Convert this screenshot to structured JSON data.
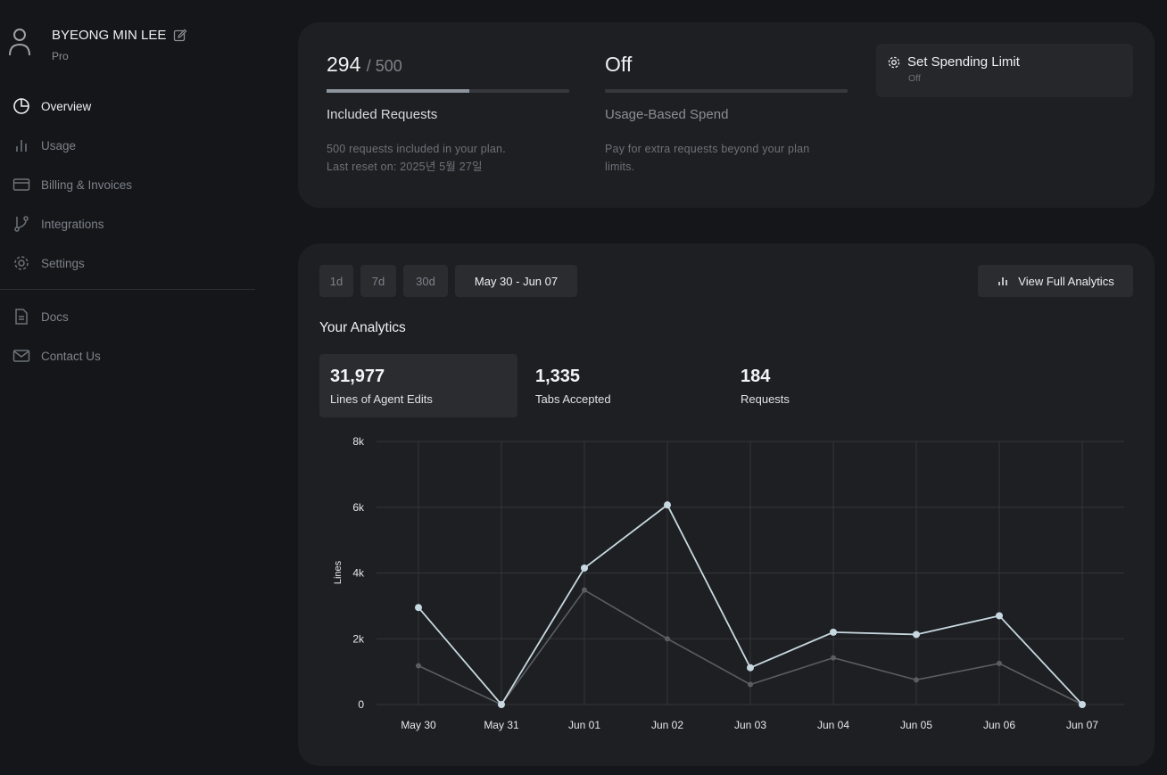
{
  "profile": {
    "name": "BYEONG MIN LEE",
    "plan": "Pro"
  },
  "nav": {
    "overview": "Overview",
    "usage": "Usage",
    "billing": "Billing & Invoices",
    "integrations": "Integrations",
    "settings": "Settings",
    "docs": "Docs",
    "contact": "Contact Us"
  },
  "included": {
    "used": "294",
    "limit": "/ 500",
    "fraction": 0.588,
    "title": "Included Requests",
    "desc_line1": "500 requests included in your plan.",
    "desc_line2": "Last reset on: 2025년 5월 27일"
  },
  "usage_based": {
    "value": "Off",
    "title": "Usage-Based Spend",
    "desc_line1": "Pay for extra requests beyond your plan",
    "desc_line2": "limits."
  },
  "spending_limit": {
    "label": "Set Spending Limit",
    "status": "Off"
  },
  "ranges": [
    "1d",
    "7d",
    "30d",
    "May 30 - Jun 07"
  ],
  "active_range": "May 30 - Jun 07",
  "view_analytics_label": "View Full Analytics",
  "analytics_title": "Your Analytics",
  "stats": [
    {
      "value": "31,977",
      "label": "Lines of Agent Edits"
    },
    {
      "value": "1,335",
      "label": "Tabs Accepted"
    },
    {
      "value": "184",
      "label": "Requests"
    }
  ],
  "colors": {
    "accent_line": "#c8d8e0",
    "secondary_line": "#5a5d62",
    "grid": "#33363b"
  },
  "chart_data": {
    "type": "line",
    "categories": [
      "May 30",
      "May 31",
      "Jun 01",
      "Jun 02",
      "Jun 03",
      "Jun 04",
      "Jun 05",
      "Jun 06",
      "Jun 07"
    ],
    "series": [
      {
        "values": [
          2950,
          0,
          4150,
          6070,
          1120,
          2200,
          2130,
          2700,
          0
        ]
      },
      {
        "values": [
          1180,
          0,
          3480,
          2000,
          610,
          1420,
          750,
          1250,
          0
        ]
      }
    ],
    "ylabel": "Lines",
    "ylim": [
      0,
      8000
    ],
    "yticks": [
      0,
      2000,
      4000,
      6000,
      8000
    ],
    "ytick_labels": [
      "0",
      "2k",
      "4k",
      "6k",
      "8k"
    ],
    "grid": true
  }
}
